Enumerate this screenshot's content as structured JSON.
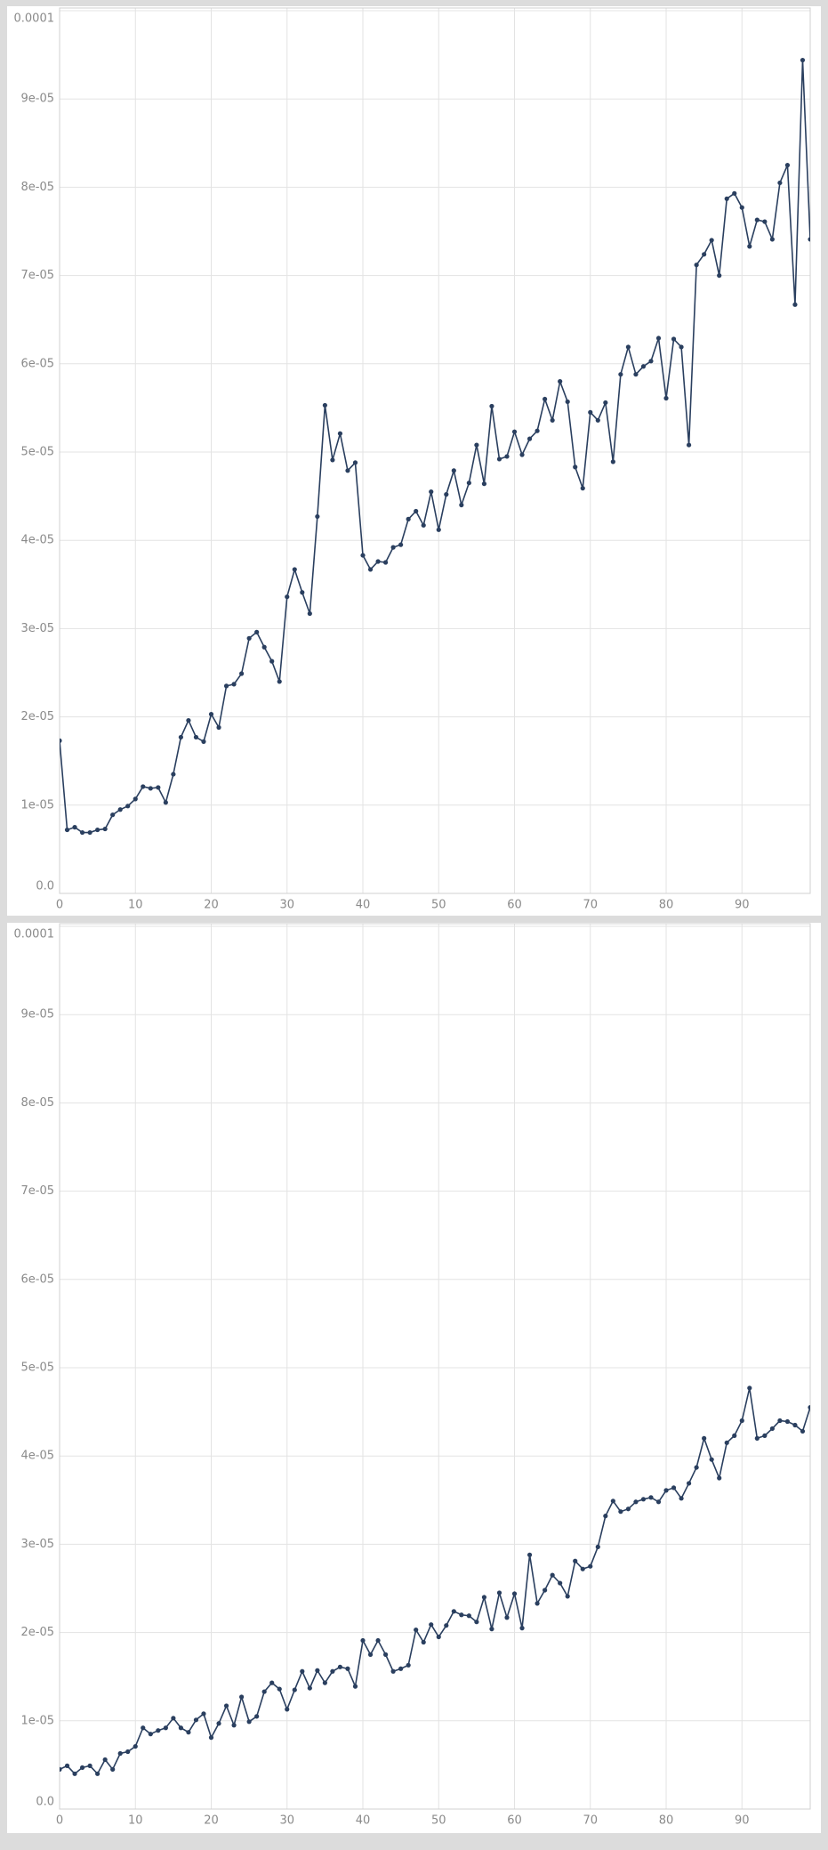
{
  "chart_data": [
    {
      "type": "line",
      "x": [
        0,
        1,
        2,
        3,
        4,
        5,
        6,
        7,
        8,
        9,
        10,
        11,
        12,
        13,
        14,
        15,
        16,
        17,
        18,
        19,
        20,
        21,
        22,
        23,
        24,
        25,
        26,
        27,
        28,
        29,
        30,
        31,
        32,
        33,
        34,
        35,
        36,
        37,
        38,
        39,
        40,
        41,
        42,
        43,
        44,
        45,
        46,
        47,
        48,
        49,
        50,
        51,
        52,
        53,
        54,
        55,
        56,
        57,
        58,
        59,
        60,
        61,
        62,
        63,
        64,
        65,
        66,
        67,
        68,
        69,
        70,
        71,
        72,
        73,
        74,
        75,
        76,
        77,
        78,
        79,
        80,
        81,
        82,
        83,
        84,
        85,
        86,
        87,
        88,
        89,
        90,
        91,
        92,
        93,
        94,
        95,
        96,
        97,
        98,
        99
      ],
      "series": [
        {
          "color": "#2a3f5f",
          "values": [
            1.73e-05,
            7.2e-06,
            7.5e-06,
            6.9e-06,
            6.9e-06,
            7.2e-06,
            7.3e-06,
            8.9e-06,
            9.5e-06,
            9.9e-06,
            1.07e-05,
            1.21e-05,
            1.19e-05,
            1.2e-05,
            1.03e-05,
            1.35e-05,
            1.77e-05,
            1.96e-05,
            1.77e-05,
            1.72e-05,
            2.03e-05,
            1.88e-05,
            2.35e-05,
            2.37e-05,
            2.49e-05,
            2.89e-05,
            2.96e-05,
            2.79e-05,
            2.63e-05,
            2.4e-05,
            3.36e-05,
            3.67e-05,
            3.41e-05,
            3.17e-05,
            4.27e-05,
            5.53e-05,
            4.91e-05,
            5.21e-05,
            4.79e-05,
            4.88e-05,
            3.83e-05,
            3.67e-05,
            3.76e-05,
            3.75e-05,
            3.92e-05,
            3.95e-05,
            4.24e-05,
            4.33e-05,
            4.17e-05,
            4.55e-05,
            4.12e-05,
            4.52e-05,
            4.79e-05,
            4.4e-05,
            4.65e-05,
            5.08e-05,
            4.64e-05,
            5.52e-05,
            4.92e-05,
            4.95e-05,
            5.23e-05,
            4.97e-05,
            5.15e-05,
            5.24e-05,
            5.6e-05,
            5.36e-05,
            5.8e-05,
            5.57e-05,
            4.83e-05,
            4.59e-05,
            5.45e-05,
            5.36e-05,
            5.56e-05,
            4.89e-05,
            5.88e-05,
            6.19e-05,
            5.88e-05,
            5.97e-05,
            6.03e-05,
            6.29e-05,
            5.61e-05,
            6.28e-05,
            6.19e-05,
            5.08e-05,
            7.12e-05,
            7.24e-05,
            7.4e-05,
            7e-05,
            7.87e-05,
            7.93e-05,
            7.77e-05,
            7.33e-05,
            7.63e-05,
            7.61e-05,
            7.41e-05,
            8.05e-05,
            8.25e-05,
            6.67e-05,
            9.44e-05,
            7.41e-05
          ]
        }
      ],
      "xlim": [
        0,
        99
      ],
      "xticks": [
        0,
        10,
        20,
        30,
        40,
        50,
        60,
        70,
        80,
        90
      ],
      "ylim": [
        0,
        0.0001
      ],
      "yticks": [
        {
          "value": 0,
          "label": "0.0"
        },
        {
          "value": 1e-05,
          "label": "1e-05"
        },
        {
          "value": 2e-05,
          "label": "2e-05"
        },
        {
          "value": 3e-05,
          "label": "3e-05"
        },
        {
          "value": 4e-05,
          "label": "4e-05"
        },
        {
          "value": 5e-05,
          "label": "5e-05"
        },
        {
          "value": 6e-05,
          "label": "6e-05"
        },
        {
          "value": 7e-05,
          "label": "7e-05"
        },
        {
          "value": 8e-05,
          "label": "8e-05"
        },
        {
          "value": 9e-05,
          "label": "9e-05"
        },
        0.0001
      ],
      "grid": true
    },
    {
      "type": "line",
      "x": [
        0,
        1,
        2,
        3,
        4,
        5,
        6,
        7,
        8,
        9,
        10,
        11,
        12,
        13,
        14,
        15,
        16,
        17,
        18,
        19,
        20,
        21,
        22,
        23,
        24,
        25,
        26,
        27,
        28,
        29,
        30,
        31,
        32,
        33,
        34,
        35,
        36,
        37,
        38,
        39,
        40,
        41,
        42,
        43,
        44,
        45,
        46,
        47,
        48,
        49,
        50,
        51,
        52,
        53,
        54,
        55,
        56,
        57,
        58,
        59,
        60,
        61,
        62,
        63,
        64,
        65,
        66,
        67,
        68,
        69,
        70,
        71,
        72,
        73,
        74,
        75,
        76,
        77,
        78,
        79,
        80,
        81,
        82,
        83,
        84,
        85,
        86,
        87,
        88,
        89,
        90,
        91,
        92,
        93,
        94,
        95,
        96,
        97,
        98,
        99
      ],
      "series": [
        {
          "color": "#2a3f5f",
          "values": [
            4.5e-06,
            4.9e-06,
            4e-06,
            4.7e-06,
            4.9e-06,
            4e-06,
            5.6e-06,
            4.5e-06,
            6.3e-06,
            6.5e-06,
            7.1e-06,
            9.2e-06,
            8.5e-06,
            8.9e-06,
            9.2e-06,
            1.03e-05,
            9.2e-06,
            8.7e-06,
            1.01e-05,
            1.08e-05,
            8.1e-06,
            9.7e-06,
            1.17e-05,
            9.5e-06,
            1.27e-05,
            9.9e-06,
            1.05e-05,
            1.33e-05,
            1.43e-05,
            1.36e-05,
            1.13e-05,
            1.35e-05,
            1.56e-05,
            1.37e-05,
            1.57e-05,
            1.43e-05,
            1.56e-05,
            1.61e-05,
            1.59e-05,
            1.39e-05,
            1.91e-05,
            1.75e-05,
            1.91e-05,
            1.75e-05,
            1.56e-05,
            1.59e-05,
            1.63e-05,
            2.03e-05,
            1.89e-05,
            2.09e-05,
            1.95e-05,
            2.08e-05,
            2.24e-05,
            2.2e-05,
            2.19e-05,
            2.12e-05,
            2.4e-05,
            2.04e-05,
            2.45e-05,
            2.17e-05,
            2.44e-05,
            2.05e-05,
            2.88e-05,
            2.33e-05,
            2.48e-05,
            2.65e-05,
            2.56e-05,
            2.41e-05,
            2.81e-05,
            2.72e-05,
            2.75e-05,
            2.97e-05,
            3.32e-05,
            3.49e-05,
            3.37e-05,
            3.4e-05,
            3.48e-05,
            3.51e-05,
            3.53e-05,
            3.48e-05,
            3.61e-05,
            3.64e-05,
            3.52e-05,
            3.69e-05,
            3.87e-05,
            4.2e-05,
            3.96e-05,
            3.75e-05,
            4.15e-05,
            4.23e-05,
            4.4e-05,
            4.77e-05,
            4.2e-05,
            4.23e-05,
            4.31e-05,
            4.4e-05,
            4.39e-05,
            4.35e-05,
            4.28e-05,
            4.55e-05
          ]
        }
      ],
      "xlim": [
        0,
        99
      ],
      "xticks": [
        0,
        10,
        20,
        30,
        40,
        50,
        60,
        70,
        80,
        90
      ],
      "ylim": [
        0,
        0.0001
      ],
      "yticks": [
        {
          "value": 0,
          "label": "0.0"
        },
        {
          "value": 1e-05,
          "label": "1e-05"
        },
        {
          "value": 2e-05,
          "label": "2e-05"
        },
        {
          "value": 3e-05,
          "label": "3e-05"
        },
        {
          "value": 4e-05,
          "label": "4e-05"
        },
        {
          "value": 5e-05,
          "label": "5e-05"
        },
        {
          "value": 6e-05,
          "label": "6e-05"
        },
        {
          "value": 7e-05,
          "label": "7e-05"
        },
        {
          "value": 8e-05,
          "label": "8e-05"
        },
        {
          "value": 9e-05,
          "label": "9e-05"
        },
        0.0001
      ],
      "grid": true
    }
  ]
}
